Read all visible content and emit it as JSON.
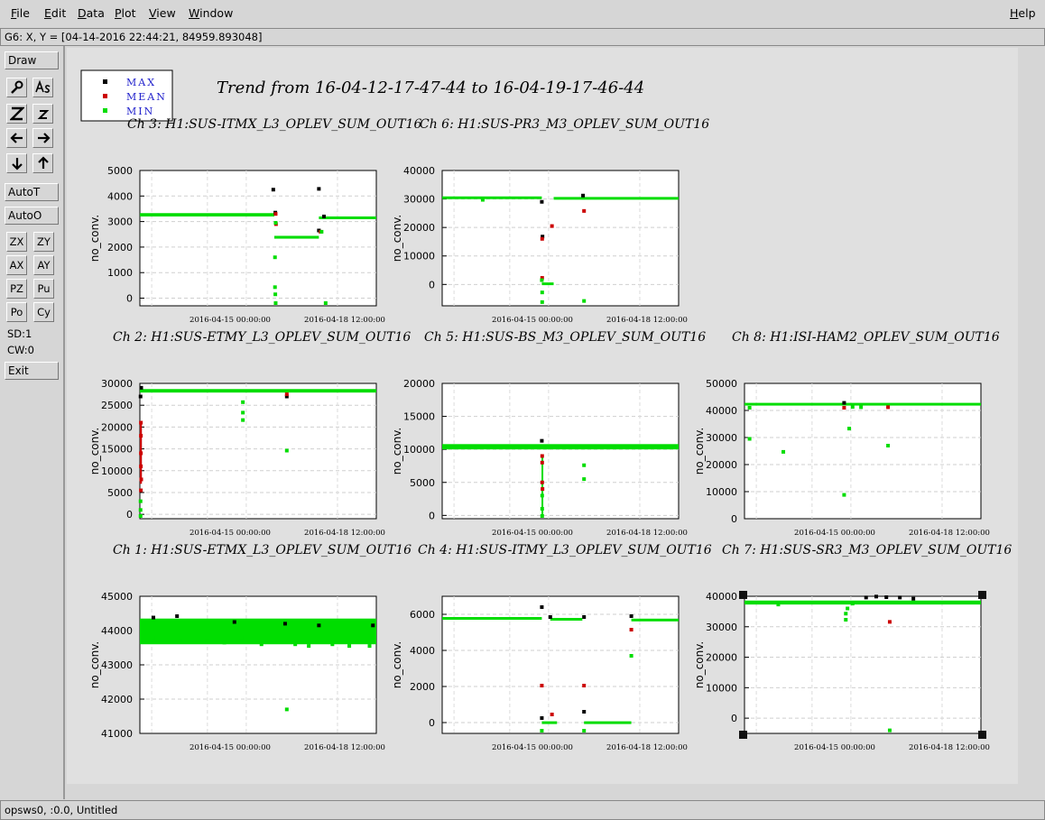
{
  "menubar": {
    "items": [
      "File",
      "Edit",
      "Data",
      "Plot",
      "View",
      "Window"
    ],
    "help": "Help"
  },
  "coord_readout": "G6: X, Y = [04-14-2016 22:44:21, 84959.893048]",
  "toolbar": {
    "draw": "Draw",
    "autot": "AutoT",
    "autoo": "AutoO",
    "zx": "ZX",
    "zy": "ZY",
    "ax": "AX",
    "ay": "AY",
    "pz": "PZ",
    "pu": "Pu",
    "po": "Po",
    "cy": "Cy",
    "sd": "SD:1",
    "cw": "CW:0",
    "exit": "Exit",
    "icons": [
      "magnify-icon",
      "text-tool-icon",
      "zoom-out-icon",
      "zoom-in-icon",
      "arrow-left-icon",
      "arrow-right-icon",
      "arrow-down-icon",
      "arrow-up-icon"
    ]
  },
  "figure": {
    "title": "Trend from 16-04-12-17-47-44 to 16-04-19-17-46-44",
    "legend": [
      {
        "label": "MAX",
        "color": "#000000"
      },
      {
        "label": "MEAN",
        "color": "#cc0000"
      },
      {
        "label": "MIN",
        "color": "#00dd00"
      }
    ]
  },
  "statusbar": "opsws0, :0.0, Untitled",
  "chart_data": [
    {
      "type": "scatter",
      "title": "Ch 3: H1:SUS-ITMX_L3_OPLEV_SUM_OUT16",
      "ylabel": "no_conv.",
      "xticks": [
        "2016-04-15 00:00:00",
        "2016-04-18 12:00:00"
      ],
      "yticks": [
        0,
        1000,
        2000,
        3000,
        4000,
        5000
      ],
      "ylim": [
        -300,
        5000
      ],
      "xlim": [
        0,
        7
      ],
      "series": [
        {
          "name": "MAX",
          "color": "#000000",
          "points": [
            [
              3.95,
              4250
            ],
            [
              4.01,
              3350
            ],
            [
              5.3,
              4280
            ],
            [
              5.45,
              3200
            ],
            [
              5.3,
              2650
            ]
          ]
        },
        {
          "name": "MEAN",
          "color": "#cc0000",
          "points": [
            [
              4.02,
              3300
            ],
            [
              4.03,
              2900
            ],
            [
              5.35,
              2600
            ]
          ]
        },
        {
          "name": "MIN",
          "color": "#00dd00",
          "points": [
            [
              4.0,
              1600
            ],
            [
              4.0,
              430
            ],
            [
              4.01,
              150
            ],
            [
              4.02,
              -200
            ],
            [
              5.5,
              -300
            ],
            [
              5.38,
              2600
            ],
            [
              4.02,
              2950
            ]
          ]
        }
      ],
      "bands": [
        {
          "color": "#00dd00",
          "x0": 0,
          "x1": 3.98,
          "y0": 3200,
          "y1": 3330
        },
        {
          "color": "#00dd00",
          "x0": 3.98,
          "x1": 5.3,
          "y0": 2330,
          "y1": 2440
        },
        {
          "color": "#00dd00",
          "x0": 5.3,
          "x1": 7,
          "y0": 3100,
          "y1": 3200
        }
      ]
    },
    {
      "type": "scatter",
      "title": "Ch 6: H1:SUS-PR3_M3_OPLEV_SUM_OUT16",
      "ylabel": "no_conv.",
      "xticks": [
        "2016-04-15 00:00:00",
        "2016-04-18 12:00:00"
      ],
      "yticks": [
        0,
        10000,
        20000,
        30000,
        40000
      ],
      "ylim": [
        -7500,
        40000
      ],
      "xlim": [
        0,
        7
      ],
      "series": [
        {
          "name": "MAX",
          "color": "#000000",
          "points": [
            [
              2.95,
              29000
            ],
            [
              2.97,
              16800
            ],
            [
              4.17,
              31200
            ]
          ]
        },
        {
          "name": "MEAN",
          "color": "#cc0000",
          "points": [
            [
              2.96,
              16000
            ],
            [
              3.25,
              20500
            ],
            [
              4.2,
              25800
            ],
            [
              2.96,
              2300
            ]
          ]
        },
        {
          "name": "MIN",
          "color": "#00dd00",
          "points": [
            [
              2.95,
              1500
            ],
            [
              2.96,
              -2800
            ],
            [
              2.96,
              -6200
            ],
            [
              4.2,
              -5800
            ],
            [
              1.2,
              29700
            ]
          ]
        }
      ],
      "bands": [
        {
          "color": "#00dd00",
          "x0": 0,
          "x1": 2.95,
          "y0": 30000,
          "y1": 30900
        },
        {
          "color": "#00dd00",
          "x0": 2.95,
          "x1": 3.3,
          "y0": -200,
          "y1": 700
        },
        {
          "color": "#00dd00",
          "x0": 3.3,
          "x1": 7,
          "y0": 29800,
          "y1": 30700
        }
      ]
    },
    {
      "type": "scatter",
      "title": "Ch 2: H1:SUS-ETMY_L3_OPLEV_SUM_OUT16",
      "ylabel": "no_conv.",
      "xticks": [
        "2016-04-15 00:00:00",
        "2016-04-18 12:00:00"
      ],
      "yticks": [
        0,
        5000,
        10000,
        15000,
        20000,
        25000,
        30000
      ],
      "ylim": [
        -1000,
        30000
      ],
      "xlim": [
        0,
        7
      ],
      "series": [
        {
          "name": "MAX",
          "color": "#000000",
          "points": [
            [
              0.04,
              29000
            ],
            [
              0.02,
              27000
            ],
            [
              4.35,
              27000
            ]
          ]
        },
        {
          "name": "MEAN",
          "color": "#cc0000",
          "points": [
            [
              0.03,
              21000
            ],
            [
              0.03,
              18000
            ],
            [
              0.03,
              14000
            ],
            [
              0.03,
              11000
            ],
            [
              0.04,
              8000
            ],
            [
              0.03,
              5500
            ],
            [
              4.35,
              27500
            ]
          ]
        },
        {
          "name": "MIN",
          "color": "#00dd00",
          "points": [
            [
              0.02,
              3000
            ],
            [
              0.02,
              1000
            ],
            [
              0.02,
              -500
            ],
            [
              3.05,
              25700
            ],
            [
              3.05,
              23300
            ],
            [
              3.05,
              21600
            ],
            [
              4.35,
              14600
            ]
          ]
        }
      ],
      "bands": [
        {
          "color": "#00dd00",
          "x0": 0,
          "x1": 7,
          "y0": 27900,
          "y1": 28700
        },
        {
          "color": "#cc0000",
          "x0": 0,
          "x1": 0.06,
          "y0": 7000,
          "y1": 21000
        }
      ]
    },
    {
      "type": "scatter",
      "title": "Ch 5: H1:SUS-BS_M3_OPLEV_SUM_OUT16",
      "ylabel": "no_conv.",
      "xticks": [
        "2016-04-15 00:00:00",
        "2016-04-18 12:00:00"
      ],
      "yticks": [
        0,
        5000,
        10000,
        15000,
        20000
      ],
      "ylim": [
        -500,
        20000
      ],
      "xlim": [
        0,
        7
      ],
      "series": [
        {
          "name": "MAX",
          "color": "#000000",
          "points": [
            [
              2.95,
              11300
            ]
          ]
        },
        {
          "name": "MEAN",
          "color": "#cc0000",
          "points": [
            [
              2.96,
              8000
            ],
            [
              2.96,
              5000
            ],
            [
              2.97,
              4000
            ],
            [
              2.96,
              9000
            ]
          ]
        },
        {
          "name": "MIN",
          "color": "#00dd00",
          "points": [
            [
              2.96,
              3000
            ],
            [
              2.96,
              1000
            ],
            [
              2.96,
              -300
            ],
            [
              4.2,
              7600
            ],
            [
              4.2,
              5500
            ]
          ]
        }
      ],
      "bands": [
        {
          "color": "#00dd00",
          "x0": 0,
          "x1": 7,
          "y0": 10000,
          "y1": 10800
        },
        {
          "color": "#00dd00",
          "x0": 2.94,
          "x1": 2.98,
          "y0": -300,
          "y1": 9000
        }
      ]
    },
    {
      "type": "scatter",
      "title": "Ch 8: H1:ISI-HAM2_OPLEV_SUM_OUT16",
      "ylabel": "no_conv.",
      "xticks": [
        "2016-04-15 00:00:00",
        "2016-04-18 12:00:00"
      ],
      "yticks": [
        0,
        10000,
        20000,
        30000,
        40000,
        50000
      ],
      "ylim": [
        0,
        50000
      ],
      "xlim": [
        0,
        7
      ],
      "series": [
        {
          "name": "MAX",
          "color": "#000000",
          "points": [
            [
              2.95,
              42800
            ]
          ]
        },
        {
          "name": "MEAN",
          "color": "#cc0000",
          "points": [
            [
              2.95,
              41000
            ],
            [
              4.25,
              41200
            ]
          ]
        },
        {
          "name": "MIN",
          "color": "#00dd00",
          "points": [
            [
              0.15,
              29500
            ],
            [
              1.15,
              24700
            ],
            [
              2.95,
              8800
            ],
            [
              3.1,
              33300
            ],
            [
              4.25,
              27000
            ],
            [
              0.15,
              41000
            ],
            [
              3.2,
              41300
            ],
            [
              3.45,
              41200
            ]
          ]
        }
      ],
      "bands": [
        {
          "color": "#00dd00",
          "x0": 0,
          "x1": 7,
          "y0": 42000,
          "y1": 42800
        }
      ]
    },
    {
      "type": "scatter",
      "title": "Ch 1: H1:SUS-ETMX_L3_OPLEV_SUM_OUT16",
      "ylabel": "no_conv.",
      "xticks": [
        "2016-04-15 00:00:00",
        "2016-04-18 12:00:00"
      ],
      "yticks": [
        41000,
        42000,
        43000,
        44000,
        45000
      ],
      "ylim": [
        41000,
        45000
      ],
      "xlim": [
        0,
        7
      ],
      "series": [
        {
          "name": "MAX",
          "color": "#000000",
          "points": [
            [
              0.4,
              44380
            ],
            [
              1.1,
              44420
            ],
            [
              2.8,
              44250
            ],
            [
              4.3,
              44200
            ],
            [
              5.3,
              44150
            ],
            [
              6.9,
              44150
            ]
          ]
        },
        {
          "name": "MEAN",
          "color": "#cc0000",
          "points": []
        },
        {
          "name": "MIN",
          "color": "#00dd00",
          "points": [
            [
              4.35,
              41700
            ],
            [
              0.4,
              43800
            ],
            [
              1.2,
              43700
            ],
            [
              2.0,
              43700
            ],
            [
              2.5,
              43650
            ],
            [
              3.0,
              43800
            ],
            [
              3.6,
              43600
            ],
            [
              4.6,
              43600
            ],
            [
              5.0,
              43550
            ],
            [
              5.7,
              43600
            ],
            [
              6.2,
              43550
            ],
            [
              6.8,
              43550
            ]
          ]
        }
      ],
      "bands": [
        {
          "color": "#00dd00",
          "x0": 0,
          "x1": 7,
          "y0": 43600,
          "y1": 44350
        }
      ]
    },
    {
      "type": "scatter",
      "title": "Ch 4: H1:SUS-ITMY_L3_OPLEV_SUM_OUT16",
      "ylabel": "no_conv.",
      "xticks": [
        "2016-04-15 00:00:00",
        "2016-04-18 12:00:00"
      ],
      "yticks": [
        0,
        2000,
        4000,
        6000
      ],
      "ylim": [
        -600,
        7000
      ],
      "xlim": [
        0,
        7
      ],
      "series": [
        {
          "name": "MAX",
          "color": "#000000",
          "points": [
            [
              2.95,
              6400
            ],
            [
              3.2,
              5850
            ],
            [
              4.2,
              5850
            ],
            [
              5.6,
              5900
            ],
            [
              2.95,
              250
            ],
            [
              4.2,
              600
            ]
          ]
        },
        {
          "name": "MEAN",
          "color": "#cc0000",
          "points": [
            [
              2.95,
              2050
            ],
            [
              4.2,
              2050
            ],
            [
              3.25,
              450
            ],
            [
              5.6,
              5150
            ]
          ]
        },
        {
          "name": "MIN",
          "color": "#00dd00",
          "points": [
            [
              2.95,
              -550
            ],
            [
              4.2,
              -550
            ],
            [
              5.6,
              3700
            ]
          ]
        }
      ],
      "bands": [
        {
          "color": "#00dd00",
          "x0": 0,
          "x1": 2.95,
          "y0": 5700,
          "y1": 5850
        },
        {
          "color": "#00dd00",
          "x0": 3.2,
          "x1": 4.15,
          "y0": 5650,
          "y1": 5800
        },
        {
          "color": "#00dd00",
          "x0": 2.95,
          "x1": 3.4,
          "y0": -30,
          "y1": 70
        },
        {
          "color": "#00dd00",
          "x0": 4.2,
          "x1": 5.6,
          "y0": -30,
          "y1": 70
        },
        {
          "color": "#00dd00",
          "x0": 5.6,
          "x1": 7,
          "y0": 5620,
          "y1": 5760
        }
      ]
    },
    {
      "type": "scatter",
      "title": "Ch 7: H1:SUS-SR3_M3_OPLEV_SUM_OUT16",
      "ylabel": "no_conv.",
      "xticks": [
        "2016-04-15 00:00:00",
        "2016-04-18 12:00:00"
      ],
      "yticks": [
        0,
        10000,
        20000,
        30000,
        40000
      ],
      "ylim": [
        -5000,
        40000
      ],
      "xlim": [
        0,
        7
      ],
      "series": [
        {
          "name": "MAX",
          "color": "#000000",
          "points": [
            [
              3.6,
              39600
            ],
            [
              3.9,
              39900
            ],
            [
              4.2,
              39700
            ],
            [
              4.6,
              39600
            ],
            [
              5.0,
              39200
            ]
          ]
        },
        {
          "name": "MEAN",
          "color": "#cc0000",
          "points": [
            [
              4.3,
              31600
            ]
          ]
        },
        {
          "name": "MIN",
          "color": "#00dd00",
          "points": [
            [
              3.0,
              34300
            ],
            [
              3.0,
              32300
            ],
            [
              3.05,
              36000
            ],
            [
              4.3,
              -4000
            ],
            [
              1.0,
              37300
            ],
            [
              3.2,
              37600
            ]
          ]
        }
      ],
      "bands": [
        {
          "color": "#00dd00",
          "x0": 0,
          "x1": 7,
          "y0": 37300,
          "y1": 38600
        }
      ]
    }
  ]
}
